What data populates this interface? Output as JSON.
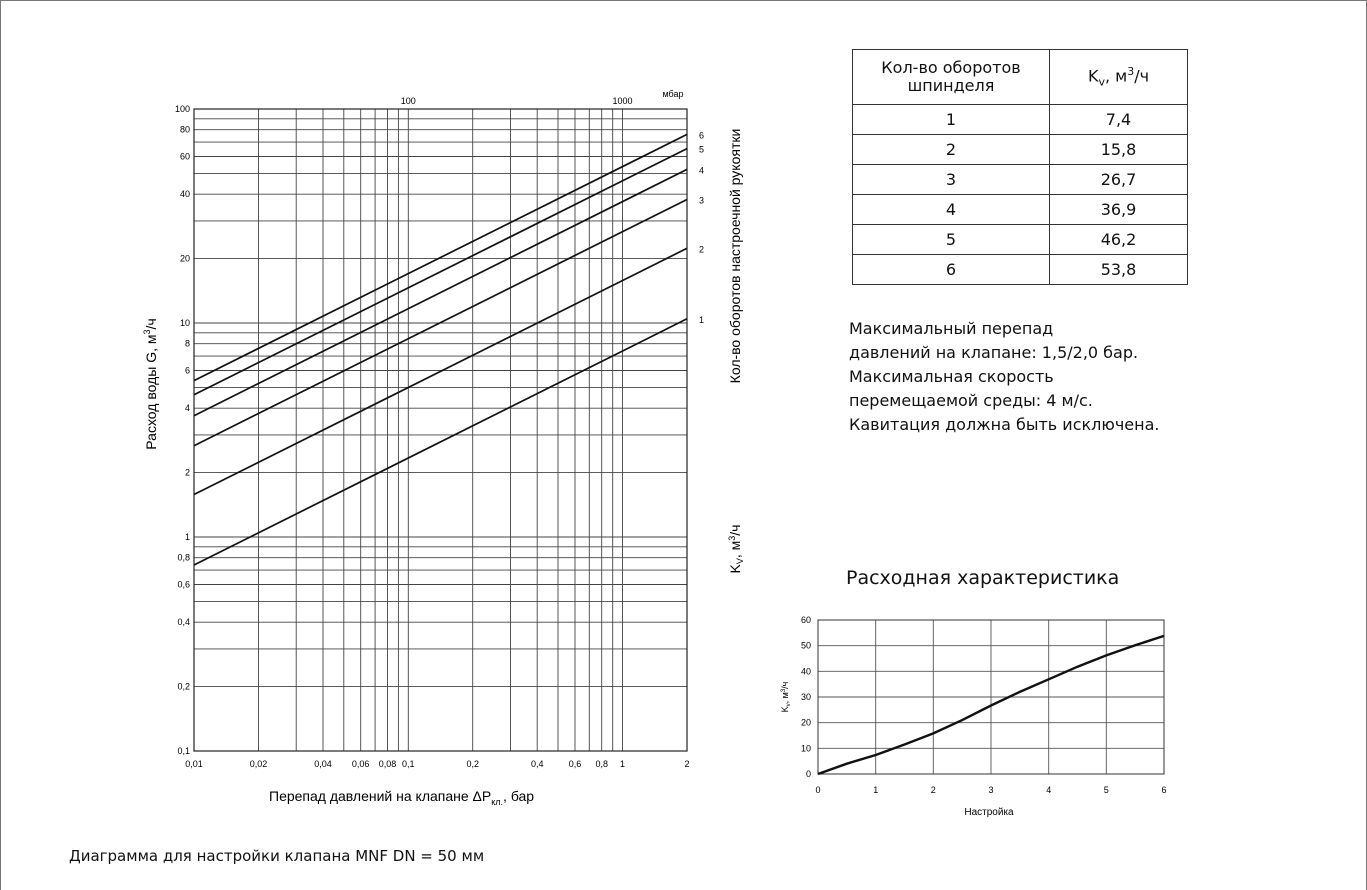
{
  "caption": "Диаграмма для настройки клапана  MNF DN = 50 мм",
  "table": {
    "header_col1": "Кол-во оборотов шпинделя",
    "header_col2_main": "K",
    "header_col2_sub": "v",
    "header_col2_unit": ", м",
    "header_col2_sup": "3",
    "header_col2_tail": "/ч",
    "rows": [
      {
        "turns": "1",
        "kv": "7,4"
      },
      {
        "turns": "2",
        "kv": "15,8"
      },
      {
        "turns": "3",
        "kv": "26,7"
      },
      {
        "turns": "4",
        "kv": "36,9"
      },
      {
        "turns": "5",
        "kv": "46,2"
      },
      {
        "turns": "6",
        "kv": "53,8"
      }
    ]
  },
  "notes": [
    "Максимальный перепад",
    "давлений на клапане: 1,5/2,0 бар.",
    "Максимальная скорость",
    "перемещаемой среды: 4 м/с.",
    "Кавитация должна быть исключена."
  ],
  "side_labels": {
    "turns_axis": "Кол-во оборотов настроечной рукоятки",
    "kv_axis_main": "K",
    "kv_axis_sub": "V",
    "kv_axis_unit": ", м",
    "kv_axis_sup": "3",
    "kv_axis_tail": "/ч"
  },
  "flow_title": "Расходная характеристика",
  "chart_data": [
    {
      "type": "line",
      "scale": "log-log",
      "ylabel_main": "Расход воды G, м",
      "ylabel_sup": "3",
      "ylabel_tail": "/ч",
      "xlabel_main": "Перепад давлений на клапане  ΔP",
      "xlabel_sub": "кл.",
      "xlabel_tail": ", бар",
      "xlim": [
        0.01,
        2
      ],
      "ylim": [
        0.1,
        100
      ],
      "x_ticks": [
        {
          "v": 0.01,
          "label": "0,01"
        },
        {
          "v": 0.02,
          "label": "0,02"
        },
        {
          "v": 0.04,
          "label": "0,04"
        },
        {
          "v": 0.06,
          "label": "0,06"
        },
        {
          "v": 0.08,
          "label": "0,08"
        },
        {
          "v": 0.1,
          "label": "0,1"
        },
        {
          "v": 0.2,
          "label": "0,2"
        },
        {
          "v": 0.4,
          "label": "0,4"
        },
        {
          "v": 0.6,
          "label": "0,6"
        },
        {
          "v": 0.8,
          "label": "0,8"
        },
        {
          "v": 1,
          "label": "1"
        },
        {
          "v": 2,
          "label": "2"
        }
      ],
      "x_gridlines": [
        0.01,
        0.02,
        0.03,
        0.04,
        0.05,
        0.06,
        0.07,
        0.08,
        0.09,
        0.1,
        0.2,
        0.3,
        0.4,
        0.5,
        0.6,
        0.7,
        0.8,
        0.9,
        1,
        2
      ],
      "top_axis": {
        "unit": "мбар",
        "ticks": [
          {
            "v": 0.1,
            "label": "100"
          },
          {
            "v": 1,
            "label": "1000"
          }
        ]
      },
      "y_ticks": [
        {
          "v": 0.1,
          "label": "0,1"
        },
        {
          "v": 0.2,
          "label": "0,2"
        },
        {
          "v": 0.4,
          "label": "0,4"
        },
        {
          "v": 0.6,
          "label": "0,6"
        },
        {
          "v": 0.8,
          "label": "0,8"
        },
        {
          "v": 1,
          "label": "1"
        },
        {
          "v": 2,
          "label": "2"
        },
        {
          "v": 4,
          "label": "4"
        },
        {
          "v": 6,
          "label": "6"
        },
        {
          "v": 8,
          "label": "8"
        },
        {
          "v": 10,
          "label": "10"
        },
        {
          "v": 20,
          "label": "20"
        },
        {
          "v": 40,
          "label": "40"
        },
        {
          "v": 60,
          "label": "60"
        },
        {
          "v": 80,
          "label": "80"
        },
        {
          "v": 100,
          "label": "100"
        }
      ],
      "y_gridlines": [
        0.1,
        0.2,
        0.3,
        0.4,
        0.5,
        0.6,
        0.7,
        0.8,
        0.9,
        1,
        2,
        3,
        4,
        5,
        6,
        7,
        8,
        9,
        10,
        20,
        30,
        40,
        50,
        60,
        70,
        80,
        90,
        100
      ],
      "series": [
        {
          "name": "1",
          "kv": 7.4
        },
        {
          "name": "2",
          "kv": 15.8
        },
        {
          "name": "3",
          "kv": 26.7
        },
        {
          "name": "4",
          "kv": 36.9
        },
        {
          "name": "5",
          "kv": 46.2
        },
        {
          "name": "6",
          "kv": 53.8
        }
      ]
    },
    {
      "type": "line",
      "xlabel": "Настройка",
      "ylabel_main": "K",
      "ylabel_sub": "v",
      "ylabel_unit": ", м",
      "ylabel_sup": "3",
      "ylabel_tail": "/ч",
      "xlim": [
        0,
        6
      ],
      "ylim": [
        0,
        60
      ],
      "x_ticks": [
        0,
        1,
        2,
        3,
        4,
        5,
        6
      ],
      "y_ticks": [
        0,
        10,
        20,
        30,
        40,
        50,
        60
      ],
      "grid": true,
      "x": [
        0,
        0.5,
        1,
        1.5,
        2,
        2.5,
        3,
        3.5,
        4,
        4.5,
        5,
        5.5,
        6
      ],
      "y": [
        0,
        4,
        7.4,
        11.5,
        15.8,
        21,
        26.7,
        32,
        36.9,
        41.8,
        46.2,
        50.2,
        53.8
      ]
    }
  ]
}
